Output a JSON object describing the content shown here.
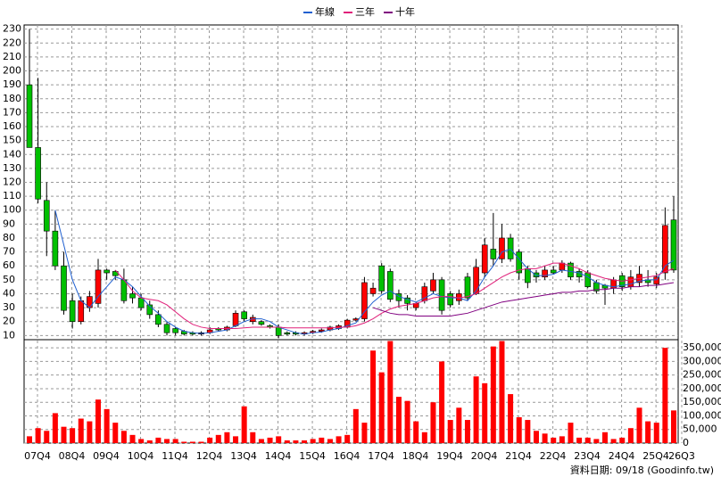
{
  "chart_data": {
    "type": "candlestick",
    "source": "資料日期: 09/18 (Goodinfo.tw)",
    "categories": [
      "07Q4",
      null,
      null,
      null,
      "08Q4",
      null,
      null,
      null,
      "09Q4",
      null,
      null,
      null,
      "10Q4",
      null,
      null,
      null,
      "11Q4",
      null,
      null,
      null,
      "12Q4",
      null,
      null,
      null,
      "13Q4",
      null,
      null,
      null,
      "14Q4",
      null,
      null,
      null,
      "15Q4",
      null,
      null,
      null,
      "16Q4",
      null,
      null,
      null,
      "17Q4",
      null,
      null,
      null,
      "18Q4",
      null,
      null,
      null,
      "19Q4",
      null,
      null,
      null,
      "20Q4",
      null,
      null,
      null,
      "21Q4",
      null,
      null,
      null,
      "22Q4",
      null,
      null,
      null,
      "23Q4",
      null,
      null,
      null,
      "24Q4",
      null,
      null,
      null,
      "25Q4",
      null,
      null,
      "26Q3"
    ],
    "open": [
      190,
      145,
      107,
      85,
      60,
      35,
      20,
      30,
      33,
      57,
      56,
      50,
      40,
      37,
      32,
      25,
      18,
      15,
      13,
      12,
      11,
      12,
      15,
      14,
      17,
      27,
      20,
      20,
      17,
      16,
      12,
      12,
      11,
      12,
      13,
      14,
      15,
      16,
      21,
      22,
      40,
      60,
      56,
      40,
      37,
      30,
      35,
      42,
      50,
      40,
      35,
      52,
      40,
      55,
      72,
      65,
      80,
      70,
      58,
      55,
      52,
      57,
      57,
      62,
      56,
      55,
      48,
      46,
      44,
      53,
      45,
      48,
      50,
      47,
      55,
      93
    ],
    "high": [
      230,
      195,
      120,
      100,
      70,
      40,
      38,
      42,
      65,
      58,
      57,
      58,
      45,
      40,
      35,
      28,
      20,
      16,
      14,
      13,
      13,
      16,
      16,
      17,
      28,
      28,
      25,
      21,
      18,
      18,
      13,
      13,
      13,
      14,
      15,
      17,
      18,
      22,
      23,
      52,
      48,
      62,
      58,
      43,
      39,
      34,
      48,
      55,
      52,
      42,
      43,
      55,
      65,
      80,
      98,
      90,
      83,
      72,
      60,
      57,
      60,
      60,
      64,
      63,
      58,
      57,
      50,
      47,
      52,
      55,
      57,
      60,
      57,
      55,
      102,
      110
    ],
    "low": [
      145,
      105,
      67,
      57,
      25,
      15,
      18,
      27,
      30,
      50,
      50,
      33,
      33,
      28,
      22,
      16,
      10,
      10,
      10,
      10,
      10,
      11,
      13,
      13,
      16,
      20,
      18,
      17,
      15,
      8,
      10,
      10,
      10,
      11,
      12,
      13,
      14,
      15,
      20,
      20,
      38,
      40,
      34,
      30,
      28,
      28,
      33,
      40,
      25,
      30,
      32,
      35,
      39,
      52,
      60,
      62,
      63,
      50,
      44,
      48,
      50,
      54,
      55,
      50,
      48,
      44,
      40,
      32,
      40,
      42,
      43,
      45,
      45,
      44,
      50,
      55
    ],
    "close": [
      145,
      108,
      85,
      60,
      28,
      20,
      35,
      38,
      57,
      55,
      53,
      35,
      37,
      30,
      25,
      18,
      12,
      12,
      11,
      11,
      12,
      14,
      14,
      16,
      26,
      22,
      23,
      18,
      16,
      10,
      11,
      11,
      12,
      13,
      14,
      16,
      17,
      21,
      22,
      48,
      44,
      42,
      36,
      35,
      33,
      33,
      45,
      50,
      28,
      32,
      40,
      37,
      59,
      75,
      65,
      80,
      65,
      55,
      48,
      52,
      57,
      55,
      62,
      52,
      52,
      45,
      42,
      44,
      50,
      45,
      52,
      54,
      48,
      52,
      89,
      57
    ],
    "volume": [
      25000,
      55000,
      45000,
      110000,
      60000,
      55000,
      90000,
      80000,
      160000,
      125000,
      75000,
      45000,
      30000,
      15000,
      10000,
      20000,
      15000,
      15000,
      5000,
      5000,
      5000,
      20000,
      30000,
      40000,
      25000,
      135000,
      40000,
      15000,
      20000,
      25000,
      10000,
      10000,
      10000,
      15000,
      20000,
      15000,
      25000,
      30000,
      125000,
      75000,
      340000,
      260000,
      375000,
      170000,
      155000,
      80000,
      40000,
      150000,
      300000,
      85000,
      130000,
      85000,
      245000,
      220000,
      355000,
      375000,
      180000,
      95000,
      85000,
      45000,
      35000,
      20000,
      25000,
      75000,
      20000,
      20000,
      15000,
      40000,
      15000,
      20000,
      55000,
      130000,
      80000,
      75000,
      350000,
      120000
    ],
    "up_color": "#ff0000",
    "down_color": "#00c000",
    "volume_color": "#ff0000",
    "series": [
      {
        "name": "年線",
        "color": "#2060d0",
        "values": [
          null,
          null,
          null,
          100,
          75,
          50,
          35,
          30,
          38,
          45,
          52,
          50,
          45,
          38,
          31,
          26,
          20,
          16,
          13,
          12,
          11.5,
          12,
          13,
          14,
          17,
          20,
          22,
          22,
          20,
          16,
          14,
          12,
          11,
          12,
          12.5,
          14,
          15,
          17,
          19,
          27,
          34,
          39,
          42,
          38,
          36,
          34,
          37,
          40,
          38,
          37,
          37,
          35,
          42,
          52,
          60,
          70,
          72,
          65,
          58,
          53,
          53,
          54,
          57,
          56,
          55,
          52,
          48,
          46,
          45,
          46,
          47,
          49,
          50,
          50,
          60,
          64
        ]
      },
      {
        "name": "三年",
        "color": "#e0207a",
        "values": [
          null,
          null,
          null,
          null,
          null,
          null,
          null,
          null,
          null,
          null,
          57,
          50,
          42,
          37,
          36,
          35,
          32,
          27,
          22,
          18,
          16,
          15,
          15,
          15,
          15,
          15.5,
          16,
          16,
          16,
          16,
          15.5,
          15.5,
          15.5,
          15.5,
          15.5,
          15.5,
          16,
          16,
          17,
          19,
          22,
          26,
          29,
          31,
          32,
          33,
          35,
          37,
          38,
          38,
          37,
          38,
          40,
          44,
          48,
          52,
          55,
          57,
          58,
          58,
          60,
          62,
          62,
          60,
          58,
          55,
          53,
          51,
          50,
          49,
          50,
          51,
          52,
          53,
          56,
          58
        ]
      },
      {
        "name": "十年",
        "color": "#800080",
        "values": [
          null,
          null,
          null,
          null,
          null,
          null,
          null,
          null,
          null,
          null,
          null,
          null,
          null,
          null,
          null,
          null,
          null,
          null,
          null,
          null,
          null,
          null,
          null,
          null,
          null,
          null,
          null,
          null,
          null,
          null,
          null,
          null,
          null,
          null,
          null,
          null,
          null,
          null,
          null,
          null,
          30,
          28,
          26,
          25,
          25,
          24,
          24,
          24,
          24,
          24,
          25,
          26,
          28,
          30,
          32,
          34,
          35,
          36,
          37,
          38,
          39,
          40,
          41,
          41,
          42,
          42,
          43,
          43,
          44,
          44,
          45,
          45,
          46,
          46,
          47,
          48
        ]
      }
    ],
    "ylim": [
      7,
      233
    ],
    "yticks": [
      10,
      20,
      30,
      40,
      50,
      60,
      70,
      80,
      90,
      100,
      110,
      120,
      130,
      140,
      150,
      160,
      170,
      180,
      190,
      200,
      210,
      220,
      230
    ],
    "y2lim": [
      0,
      380000
    ],
    "y2ticks": [
      0,
      {
        "value": 50000,
        "label": "50,000"
      },
      {
        "value": 100000,
        "label": "100,000"
      },
      {
        "value": 150000,
        "label": "150,000"
      },
      {
        "value": 200000,
        "label": "200,000"
      },
      {
        "value": 250000,
        "label": "250,000"
      },
      {
        "value": 300000,
        "label": "300,000"
      },
      {
        "value": 350000,
        "label": "350,000"
      }
    ],
    "grid": true
  }
}
